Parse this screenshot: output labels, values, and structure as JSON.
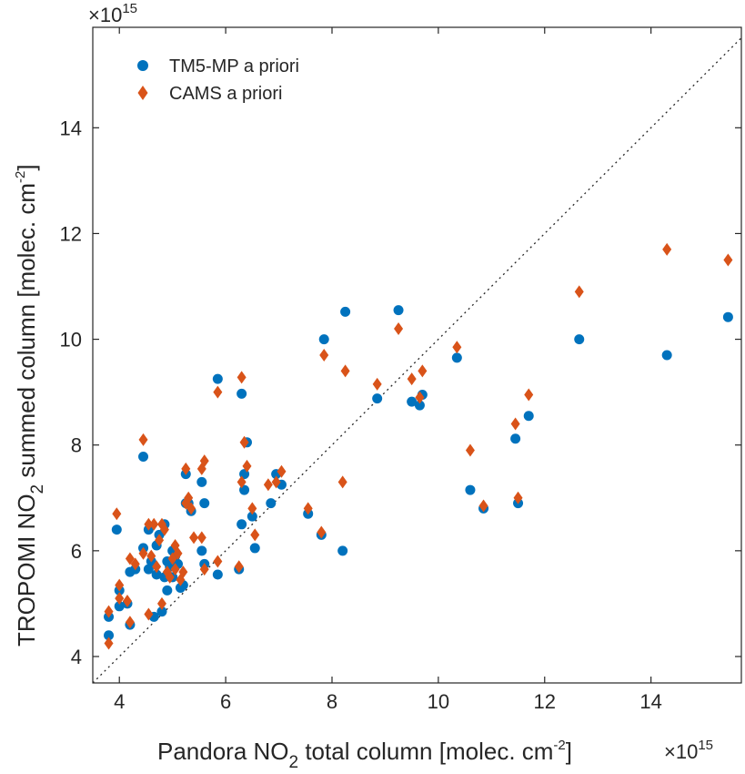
{
  "chart_data": {
    "type": "scatter",
    "xlabel": {
      "pre": "Pandora NO",
      "sub": "2",
      "post": " total column [molec. cm",
      "sup": "-2",
      "end": "]"
    },
    "ylabel": {
      "pre": "TROPOMI NO",
      "sub": "2",
      "post": " summed column [molec. cm",
      "sup": "-2",
      "end": "]"
    },
    "x_multiplier": {
      "base": "×10",
      "exp": "15"
    },
    "y_multiplier": {
      "base": "×10",
      "exp": "15"
    },
    "xlim": [
      3.5,
      15.7
    ],
    "ylim": [
      3.5,
      15.9
    ],
    "xticks": [
      4,
      6,
      8,
      10,
      12,
      14
    ],
    "yticks": [
      4,
      6,
      8,
      10,
      12,
      14
    ],
    "one_to_one_line": true,
    "legend_position": "top-left",
    "series": [
      {
        "name": "TM5-MP a priori",
        "marker": "circle",
        "color": "#0072BD",
        "points": [
          [
            3.8,
            4.4
          ],
          [
            3.8,
            4.75
          ],
          [
            3.95,
            6.4
          ],
          [
            4.0,
            5.25
          ],
          [
            4.0,
            4.95
          ],
          [
            4.15,
            5.0
          ],
          [
            4.2,
            4.6
          ],
          [
            4.2,
            5.6
          ],
          [
            4.3,
            5.65
          ],
          [
            4.45,
            7.78
          ],
          [
            4.45,
            6.05
          ],
          [
            4.55,
            6.4
          ],
          [
            4.55,
            5.65
          ],
          [
            4.6,
            5.8
          ],
          [
            4.65,
            4.75
          ],
          [
            4.7,
            5.55
          ],
          [
            4.7,
            6.1
          ],
          [
            4.75,
            6.3
          ],
          [
            4.8,
            4.85
          ],
          [
            4.85,
            6.5
          ],
          [
            4.85,
            5.5
          ],
          [
            4.9,
            5.8
          ],
          [
            4.9,
            5.25
          ],
          [
            4.95,
            5.7
          ],
          [
            5.0,
            6.0
          ],
          [
            5.0,
            5.5
          ],
          [
            5.05,
            5.9
          ],
          [
            5.1,
            5.75
          ],
          [
            5.15,
            5.3
          ],
          [
            5.2,
            5.35
          ],
          [
            5.25,
            6.9
          ],
          [
            5.25,
            7.45
          ],
          [
            5.3,
            6.9
          ],
          [
            5.35,
            6.75
          ],
          [
            5.55,
            7.3
          ],
          [
            5.55,
            6.0
          ],
          [
            5.6,
            6.9
          ],
          [
            5.6,
            5.75
          ],
          [
            5.85,
            9.25
          ],
          [
            5.85,
            5.55
          ],
          [
            6.25,
            5.65
          ],
          [
            6.3,
            8.97
          ],
          [
            6.3,
            6.5
          ],
          [
            6.35,
            7.45
          ],
          [
            6.35,
            7.15
          ],
          [
            6.4,
            8.05
          ],
          [
            6.5,
            6.65
          ],
          [
            6.55,
            6.05
          ],
          [
            6.85,
            6.9
          ],
          [
            6.95,
            7.45
          ],
          [
            7.05,
            7.25
          ],
          [
            7.55,
            6.7
          ],
          [
            7.8,
            6.3
          ],
          [
            7.85,
            10.0
          ],
          [
            8.2,
            6.0
          ],
          [
            8.25,
            10.52
          ],
          [
            8.85,
            8.88
          ],
          [
            9.25,
            10.55
          ],
          [
            9.5,
            8.82
          ],
          [
            9.65,
            8.75
          ],
          [
            9.7,
            8.95
          ],
          [
            10.35,
            9.65
          ],
          [
            10.6,
            7.15
          ],
          [
            10.85,
            6.8
          ],
          [
            11.45,
            8.12
          ],
          [
            11.5,
            6.9
          ],
          [
            11.7,
            8.55
          ],
          [
            12.65,
            10.0
          ],
          [
            14.3,
            9.7
          ],
          [
            15.45,
            10.42
          ]
        ]
      },
      {
        "name": "CAMS a priori",
        "marker": "diamond",
        "color": "#D95319",
        "points": [
          [
            3.8,
            4.25
          ],
          [
            3.8,
            4.85
          ],
          [
            3.95,
            6.7
          ],
          [
            4.0,
            5.35
          ],
          [
            4.0,
            5.1
          ],
          [
            4.15,
            5.05
          ],
          [
            4.2,
            4.65
          ],
          [
            4.2,
            5.85
          ],
          [
            4.3,
            5.75
          ],
          [
            4.45,
            8.1
          ],
          [
            4.45,
            5.95
          ],
          [
            4.55,
            6.5
          ],
          [
            4.55,
            4.8
          ],
          [
            4.6,
            5.9
          ],
          [
            4.65,
            6.5
          ],
          [
            4.7,
            5.7
          ],
          [
            4.75,
            6.2
          ],
          [
            4.8,
            6.5
          ],
          [
            4.8,
            5.0
          ],
          [
            4.85,
            6.4
          ],
          [
            4.9,
            5.6
          ],
          [
            4.95,
            5.5
          ],
          [
            5.0,
            5.85
          ],
          [
            5.05,
            6.1
          ],
          [
            5.05,
            5.65
          ],
          [
            5.1,
            5.95
          ],
          [
            5.15,
            5.45
          ],
          [
            5.2,
            5.6
          ],
          [
            5.25,
            7.55
          ],
          [
            5.25,
            6.9
          ],
          [
            5.3,
            7.0
          ],
          [
            5.35,
            6.8
          ],
          [
            5.4,
            6.25
          ],
          [
            5.55,
            7.55
          ],
          [
            5.55,
            6.25
          ],
          [
            5.6,
            7.7
          ],
          [
            5.6,
            5.65
          ],
          [
            5.85,
            9.0
          ],
          [
            5.85,
            5.8
          ],
          [
            6.25,
            5.7
          ],
          [
            6.3,
            9.28
          ],
          [
            6.3,
            7.3
          ],
          [
            6.35,
            8.05
          ],
          [
            6.4,
            7.6
          ],
          [
            6.5,
            6.8
          ],
          [
            6.55,
            6.3
          ],
          [
            6.8,
            7.25
          ],
          [
            6.95,
            7.3
          ],
          [
            7.05,
            7.5
          ],
          [
            7.55,
            6.8
          ],
          [
            7.8,
            6.35
          ],
          [
            7.85,
            9.7
          ],
          [
            8.2,
            7.3
          ],
          [
            8.25,
            9.4
          ],
          [
            8.85,
            9.15
          ],
          [
            9.25,
            10.2
          ],
          [
            9.5,
            9.25
          ],
          [
            9.65,
            8.9
          ],
          [
            9.7,
            9.4
          ],
          [
            10.35,
            9.85
          ],
          [
            10.6,
            7.9
          ],
          [
            10.85,
            6.85
          ],
          [
            11.45,
            8.4
          ],
          [
            11.5,
            7.0
          ],
          [
            11.7,
            8.95
          ],
          [
            12.65,
            10.9
          ],
          [
            14.3,
            11.7
          ],
          [
            15.45,
            11.5
          ]
        ]
      }
    ]
  }
}
